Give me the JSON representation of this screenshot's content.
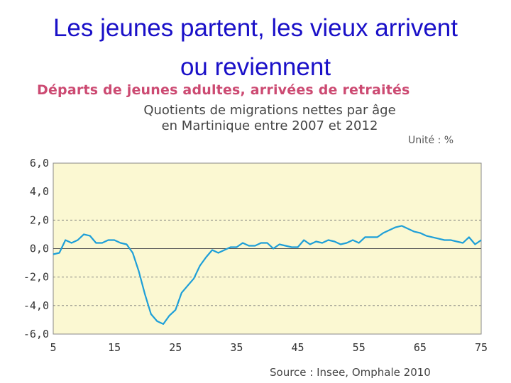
{
  "slide": {
    "title_line1": "Les jeunes partent, les vieux arrivent",
    "title_line2": "ou reviennent"
  },
  "chart_data": {
    "type": "line",
    "title": "Départs de jeunes adultes, arrivées de retraités",
    "subtitle_line1": "Quotients de migrations nettes par âge",
    "subtitle_line2": "en Martinique entre 2007 et 2012",
    "unit": "Unité :   %",
    "source": "Source : Insee, Omphale 2010",
    "xlim": [
      5,
      75
    ],
    "ylim": [
      -6,
      6
    ],
    "x_ticks": [
      "5",
      "15",
      "25",
      "35",
      "45",
      "55",
      "65",
      "75"
    ],
    "y_ticks": [
      "6,0",
      "4,0",
      "2,0",
      "0,0",
      "-2,0",
      "-4,0",
      "-6,0"
    ],
    "grid": "dashed horizontal lines at -4, -2, 2; solid line at 0",
    "colors": {
      "line": "#1e9fd8",
      "plot_bg": "#fbf8d2",
      "title": "#cc4a72",
      "slide_title": "#1a10c8"
    },
    "series": [
      {
        "x": [
          5,
          6,
          7,
          8,
          9,
          10,
          11,
          12,
          13,
          14,
          15,
          16,
          17,
          18,
          19,
          20,
          21,
          22,
          23,
          24,
          25,
          26,
          27,
          28,
          29,
          30,
          31,
          32,
          33,
          34,
          35,
          36,
          37,
          38,
          39,
          40,
          41,
          42,
          43,
          44,
          45,
          46,
          47,
          48,
          49,
          50,
          51,
          52,
          53,
          54,
          55,
          56,
          57,
          58,
          59,
          60,
          61,
          62,
          63,
          64,
          65,
          66,
          67,
          68,
          69,
          70,
          71,
          72,
          73,
          74,
          75
        ],
        "y": [
          -0.4,
          -0.3,
          0.6,
          0.4,
          0.6,
          1.0,
          0.9,
          0.4,
          0.4,
          0.6,
          0.6,
          0.4,
          0.3,
          -0.3,
          -1.6,
          -3.2,
          -4.6,
          -5.1,
          -5.3,
          -4.7,
          -4.3,
          -3.1,
          -2.6,
          -2.1,
          -1.2,
          -0.6,
          -0.1,
          -0.3,
          -0.1,
          0.1,
          0.1,
          0.4,
          0.2,
          0.2,
          0.4,
          0.4,
          0.0,
          0.3,
          0.2,
          0.1,
          0.1,
          0.6,
          0.3,
          0.5,
          0.4,
          0.6,
          0.5,
          0.3,
          0.4,
          0.6,
          0.4,
          0.8,
          0.8,
          0.8,
          1.1,
          1.3,
          1.5,
          1.6,
          1.4,
          1.2,
          1.1,
          0.9,
          0.8,
          0.7,
          0.6,
          0.6,
          0.5,
          0.4,
          0.8,
          0.3,
          0.6
        ]
      }
    ]
  }
}
